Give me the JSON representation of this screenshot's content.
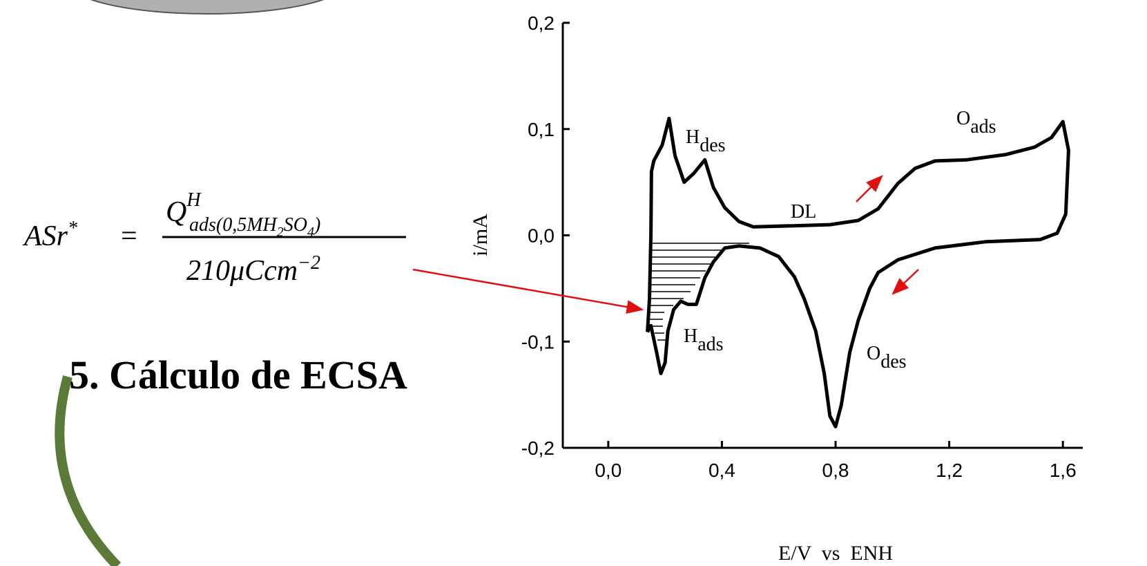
{
  "heading": "5. Cálculo de ECSA",
  "formula": {
    "lhs": "ASr",
    "lhs_sup": "*",
    "equals": "=",
    "num": "Q",
    "num_sup": "H",
    "num_sub": [
      "ads(0,5MH",
      "2",
      "SO",
      "4",
      ")"
    ],
    "den": "210μCcm",
    "den_sup": "−2"
  },
  "chart_data": {
    "type": "line",
    "color": "#000000",
    "x_label": "E/V  vs  ENH",
    "y_label": "i/mA",
    "xlim": [
      -0.16,
      1.67
    ],
    "ylim": [
      -0.2,
      0.2
    ],
    "xticks": [
      {
        "value": 0.0,
        "label": "0,0"
      },
      {
        "value": 0.4,
        "label": "0,4"
      },
      {
        "value": 0.8,
        "label": "0,8"
      },
      {
        "value": 1.2,
        "label": "1,2"
      },
      {
        "value": 1.6,
        "label": "1,6"
      }
    ],
    "yticks": [
      {
        "value": -0.2,
        "label": "-0,2"
      },
      {
        "value": -0.1,
        "label": "-0,1"
      },
      {
        "value": 0.0,
        "label": "0,0"
      },
      {
        "value": 0.1,
        "label": "0,1"
      },
      {
        "value": 0.2,
        "label": "0,2"
      }
    ],
    "x": [
      0.138,
      0.145,
      0.15,
      0.152,
      0.16,
      0.19,
      0.214,
      0.235,
      0.267,
      0.3,
      0.34,
      0.37,
      0.41,
      0.46,
      0.51,
      0.65,
      0.78,
      0.88,
      0.95,
      1.02,
      1.08,
      1.15,
      1.26,
      1.4,
      1.5,
      1.56,
      1.6,
      1.62,
      1.61,
      1.58,
      1.52,
      1.33,
      1.15,
      1.02,
      0.95,
      0.92,
      0.88,
      0.85,
      0.82,
      0.8,
      0.78,
      0.76,
      0.73,
      0.69,
      0.655,
      0.6,
      0.534,
      0.46,
      0.41,
      0.37,
      0.34,
      0.31,
      0.28,
      0.255,
      0.23,
      0.21,
      0.2,
      0.185,
      0.17,
      0.15,
      0.138
    ],
    "values": [
      -0.091,
      -0.06,
      0.0,
      0.06,
      0.07,
      0.085,
      0.11,
      0.075,
      0.05,
      0.058,
      0.071,
      0.045,
      0.026,
      0.013,
      0.008,
      0.009,
      0.01,
      0.014,
      0.025,
      0.049,
      0.063,
      0.07,
      0.071,
      0.076,
      0.083,
      0.092,
      0.107,
      0.08,
      0.02,
      0.002,
      -0.004,
      -0.006,
      -0.012,
      -0.023,
      -0.035,
      -0.05,
      -0.08,
      -0.11,
      -0.16,
      -0.18,
      -0.17,
      -0.13,
      -0.09,
      -0.06,
      -0.039,
      -0.02,
      -0.012,
      -0.01,
      -0.012,
      -0.025,
      -0.04,
      -0.065,
      -0.065,
      -0.062,
      -0.07,
      -0.09,
      -0.12,
      -0.13,
      -0.11,
      -0.085,
      -0.091
    ],
    "annotations": [
      {
        "text": "H",
        "sub": "des"
      },
      {
        "text": "DL"
      },
      {
        "text": "O",
        "sub": "ads"
      },
      {
        "text": "H",
        "sub": "ads"
      },
      {
        "text": "O",
        "sub": "des"
      }
    ]
  }
}
